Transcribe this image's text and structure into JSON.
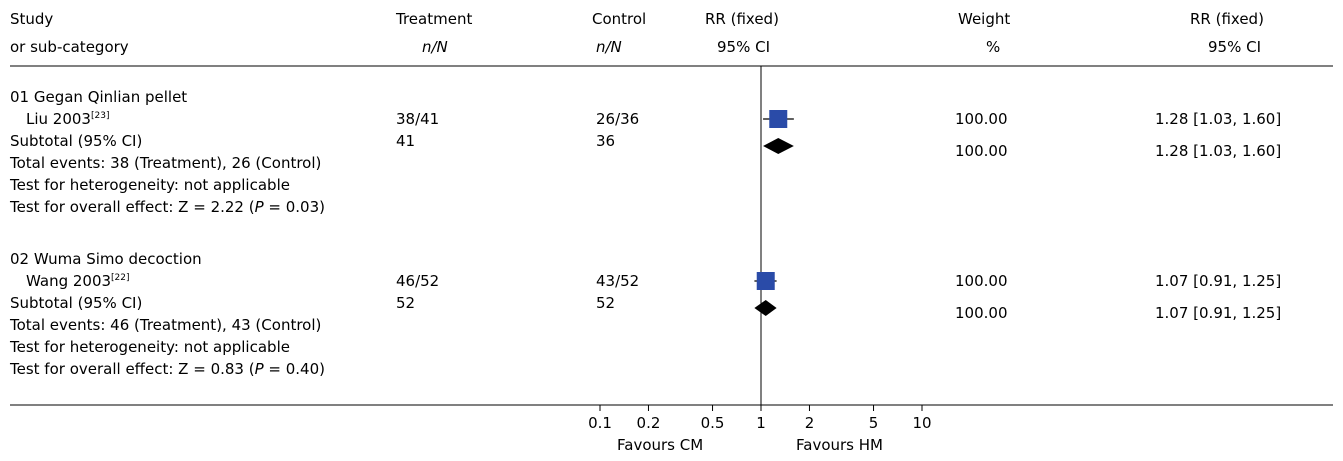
{
  "header": {
    "study": "Study",
    "subcategory": "or sub-category",
    "treatment": "Treatment",
    "treatment_unit": "n/N",
    "control": "Control",
    "control_unit": "n/N",
    "rr_plot": "RR (fixed)",
    "rr_plot_ci": "95% CI",
    "weight": "Weight",
    "weight_unit": "%",
    "rr_col": "RR (fixed)",
    "rr_col_ci": "95% CI"
  },
  "groups": [
    {
      "title": "01 Gegan Qinlian pellet",
      "study_name": "Liu 2003",
      "study_ref": "[23]",
      "treatment": "38/41",
      "control": "26/36",
      "weight": "100.00",
      "rr_text": "1.28 [1.03, 1.60]",
      "subtotal_label": "Subtotal (95% CI)",
      "subtotal_treatment": "41",
      "subtotal_control": "36",
      "subtotal_weight": "100.00",
      "subtotal_rr_text": "1.28 [1.03, 1.60]",
      "total_events": "Total events: 38 (Treatment), 26 (Control)",
      "heterogeneity": "Test for heterogeneity: not applicable",
      "overall_prefix": "Test for overall effect: Z = 2.22 (",
      "overall_p": "P",
      "overall_suffix": " = 0.03)"
    },
    {
      "title": "02 Wuma Simo decoction",
      "study_name": "Wang 2003",
      "study_ref": "[22]",
      "treatment": "46/52",
      "control": "43/52",
      "weight": "100.00",
      "rr_text": "1.07 [0.91, 1.25]",
      "subtotal_label": "Subtotal (95% CI)",
      "subtotal_treatment": "52",
      "subtotal_control": "52",
      "subtotal_weight": "100.00",
      "subtotal_rr_text": "1.07 [0.91, 1.25]",
      "total_events": "Total events: 46 (Treatment), 43 (Control)",
      "heterogeneity": "Test for heterogeneity: not applicable",
      "overall_prefix": "Test for overall effect: Z = 0.83 (",
      "overall_p": "P",
      "overall_suffix": " = 0.40)"
    }
  ],
  "axis": {
    "favours_left": "Favours CM",
    "favours_right": "Favours HM"
  },
  "colors": {
    "study_box": "#2a4ba8",
    "diamond": "#000000",
    "lines": "#000000"
  },
  "chart_data": {
    "type": "forest",
    "scale": "log",
    "xlim": [
      0.1,
      10
    ],
    "ticks": [
      0.1,
      0.2,
      0.5,
      1,
      2,
      5,
      10
    ],
    "tick_labels": [
      "0.1",
      "0.2",
      "0.5",
      "1",
      "2",
      "5",
      "10"
    ],
    "null_value": 1,
    "studies": [
      {
        "group": "01 Gegan Qinlian pellet",
        "name": "Liu 2003",
        "rr": 1.28,
        "lo": 1.03,
        "hi": 1.6,
        "weight": 100.0
      },
      {
        "group": "02 Wuma Simo decoction",
        "name": "Wang 2003",
        "rr": 1.07,
        "lo": 0.91,
        "hi": 1.25,
        "weight": 100.0
      }
    ],
    "subtotals": [
      {
        "group": "01 Gegan Qinlian pellet",
        "rr": 1.28,
        "lo": 1.03,
        "hi": 1.6
      },
      {
        "group": "02 Wuma Simo decoction",
        "rr": 1.07,
        "lo": 0.91,
        "hi": 1.25
      }
    ]
  }
}
